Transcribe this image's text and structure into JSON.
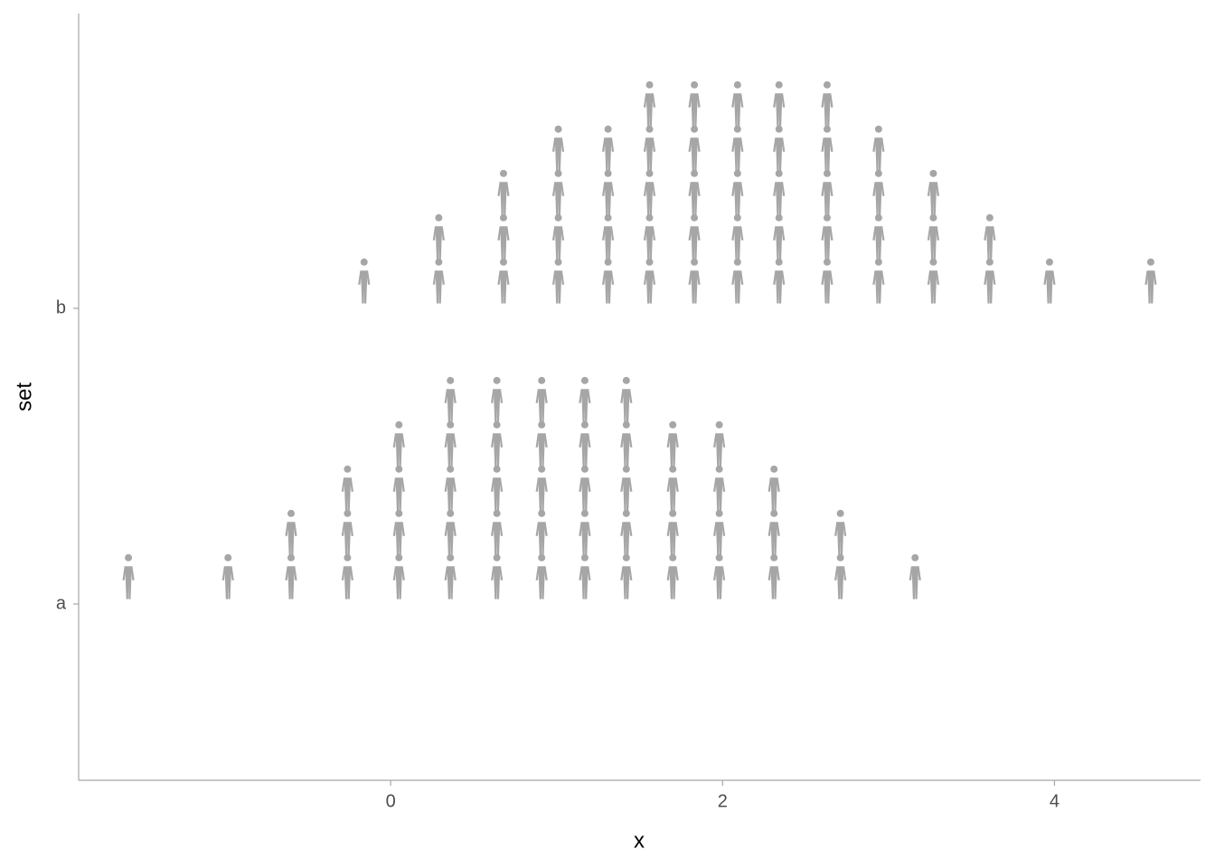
{
  "chart_data": {
    "type": "dotplot",
    "xlabel": "x",
    "ylabel": "set",
    "categories": [
      "a",
      "b"
    ],
    "values": [
      [
        -1.58,
        -0.98,
        -0.6,
        -0.6,
        -0.26,
        -0.26,
        -0.26,
        0.05,
        0.05,
        0.05,
        0.05,
        0.36,
        0.36,
        0.36,
        0.36,
        0.36,
        0.64,
        0.64,
        0.64,
        0.64,
        0.64,
        0.91,
        0.91,
        0.91,
        0.91,
        0.91,
        1.17,
        1.17,
        1.17,
        1.17,
        1.17,
        1.42,
        1.42,
        1.42,
        1.42,
        1.42,
        1.7,
        1.7,
        1.7,
        1.7,
        1.98,
        1.98,
        1.98,
        1.98,
        2.31,
        2.31,
        2.31,
        2.71,
        2.71,
        3.16
      ],
      [
        -0.16,
        0.29,
        0.29,
        0.68,
        0.68,
        0.68,
        1.01,
        1.01,
        1.01,
        1.01,
        1.31,
        1.31,
        1.31,
        1.31,
        1.56,
        1.56,
        1.56,
        1.56,
        1.56,
        1.83,
        1.83,
        1.83,
        1.83,
        1.83,
        2.09,
        2.09,
        2.09,
        2.09,
        2.09,
        2.34,
        2.34,
        2.34,
        2.34,
        2.34,
        2.63,
        2.63,
        2.63,
        2.63,
        2.63,
        2.94,
        2.94,
        2.94,
        2.94,
        3.27,
        3.27,
        3.27,
        3.61,
        3.61,
        3.97,
        4.58
      ]
    ],
    "color": "#a6a6a6",
    "xlim": [
      -1.88,
      4.88
    ],
    "xticks": [
      0,
      2,
      4
    ]
  }
}
